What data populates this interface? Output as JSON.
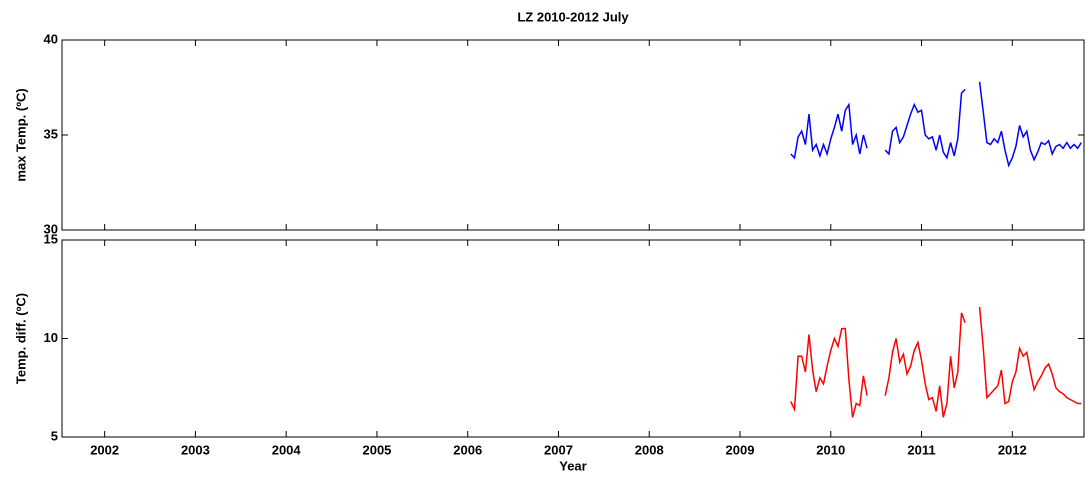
{
  "chart_data": [
    {
      "type": "line",
      "title": "LZ  2010-2012  July",
      "ylabel": "max Temp. (ºC)",
      "x": [
        2009.56,
        2009.6,
        2009.64,
        2009.68,
        2009.72,
        2009.76,
        2009.8,
        2009.84,
        2009.88,
        2009.92,
        2009.96,
        2010.0,
        2010.04,
        2010.08,
        2010.12,
        2010.16,
        2010.2,
        2010.24,
        2010.28,
        2010.32,
        2010.36,
        2010.4,
        2010.5,
        2010.6,
        2010.64,
        2010.68,
        2010.72,
        2010.76,
        2010.8,
        2010.84,
        2010.88,
        2010.92,
        2010.96,
        2011.0,
        2011.04,
        2011.08,
        2011.12,
        2011.16,
        2011.2,
        2011.24,
        2011.28,
        2011.32,
        2011.36,
        2011.4,
        2011.44,
        2011.48,
        2011.56,
        2011.64,
        2011.68,
        2011.72,
        2011.76,
        2011.8,
        2011.84,
        2011.88,
        2011.92,
        2011.96,
        2012.0,
        2012.04,
        2012.08,
        2012.12,
        2012.16,
        2012.2,
        2012.24,
        2012.28,
        2012.32,
        2012.36,
        2012.4,
        2012.44,
        2012.48,
        2012.52,
        2012.56,
        2012.6,
        2012.64,
        2012.68,
        2012.72,
        2012.76
      ],
      "series": [
        {
          "name": "max Temp.",
          "color": "#0000ff",
          "values": [
            34.0,
            33.8,
            34.9,
            35.2,
            34.5,
            36.1,
            34.2,
            34.5,
            33.9,
            34.5,
            34.0,
            34.8,
            35.4,
            36.1,
            35.2,
            36.3,
            36.6,
            34.5,
            35.0,
            34.0,
            35.0,
            34.3,
            null,
            34.2,
            34.0,
            35.2,
            35.4,
            34.6,
            34.9,
            35.5,
            36.1,
            36.6,
            36.2,
            36.3,
            35.0,
            34.8,
            34.9,
            34.2,
            35.0,
            34.1,
            33.8,
            34.6,
            33.9,
            34.8,
            37.2,
            37.4,
            null,
            37.8,
            36.2,
            34.6,
            34.5,
            34.8,
            34.6,
            35.2,
            34.2,
            33.4,
            33.8,
            34.4,
            35.5,
            34.9,
            35.2,
            34.2,
            33.7,
            34.1,
            34.6,
            34.5,
            34.7,
            34.0,
            34.4,
            34.5,
            34.3,
            34.6,
            34.3,
            34.5,
            34.3,
            34.6
          ]
        }
      ],
      "xlim": [
        2001.53,
        2012.79
      ],
      "xticks": [
        2002,
        2003,
        2004,
        2005,
        2006,
        2007,
        2008,
        2009,
        2010,
        2011,
        2012
      ],
      "ylim": [
        30,
        40
      ],
      "yticks": [
        30,
        35,
        40
      ]
    },
    {
      "type": "line",
      "xlabel": "Year",
      "ylabel": "Temp. diff. (ºC)",
      "x": [
        2009.56,
        2009.6,
        2009.64,
        2009.68,
        2009.72,
        2009.76,
        2009.8,
        2009.84,
        2009.88,
        2009.92,
        2009.96,
        2010.0,
        2010.04,
        2010.08,
        2010.12,
        2010.16,
        2010.2,
        2010.24,
        2010.28,
        2010.32,
        2010.36,
        2010.4,
        2010.5,
        2010.6,
        2010.64,
        2010.68,
        2010.72,
        2010.76,
        2010.8,
        2010.84,
        2010.88,
        2010.92,
        2010.96,
        2011.0,
        2011.04,
        2011.08,
        2011.12,
        2011.16,
        2011.2,
        2011.24,
        2011.28,
        2011.32,
        2011.36,
        2011.4,
        2011.44,
        2011.48,
        2011.56,
        2011.64,
        2011.68,
        2011.72,
        2011.76,
        2011.8,
        2011.84,
        2011.88,
        2011.92,
        2011.96,
        2012.0,
        2012.04,
        2012.08,
        2012.12,
        2012.16,
        2012.2,
        2012.24,
        2012.28,
        2012.32,
        2012.36,
        2012.4,
        2012.44,
        2012.48,
        2012.52,
        2012.56,
        2012.6,
        2012.64,
        2012.68,
        2012.72,
        2012.76
      ],
      "series": [
        {
          "name": "Temp. diff.",
          "color": "#ff0000",
          "values": [
            6.8,
            6.4,
            9.1,
            9.1,
            8.3,
            10.2,
            8.4,
            7.3,
            8.0,
            7.7,
            8.6,
            9.4,
            10.0,
            9.6,
            10.5,
            10.5,
            7.9,
            6.0,
            6.7,
            6.6,
            8.1,
            7.1,
            null,
            7.1,
            8.0,
            9.3,
            10.0,
            8.8,
            9.2,
            8.2,
            8.6,
            9.4,
            9.8,
            8.9,
            7.7,
            6.9,
            7.0,
            6.3,
            7.6,
            6.0,
            6.7,
            9.1,
            7.5,
            8.3,
            11.3,
            10.8,
            null,
            11.6,
            9.5,
            7.0,
            7.2,
            7.4,
            7.6,
            8.4,
            6.7,
            6.8,
            7.8,
            8.3,
            9.5,
            9.1,
            9.3,
            8.3,
            7.4,
            7.8,
            8.1,
            8.5,
            8.7,
            8.2,
            7.5,
            7.3,
            7.2,
            7.0,
            6.9,
            6.8,
            6.7,
            6.7
          ]
        }
      ],
      "xlim": [
        2001.53,
        2012.79
      ],
      "xticks": [
        2002,
        2003,
        2004,
        2005,
        2006,
        2007,
        2008,
        2009,
        2010,
        2011,
        2012
      ],
      "ylim": [
        5,
        15
      ],
      "yticks": [
        5,
        10,
        15
      ]
    }
  ]
}
